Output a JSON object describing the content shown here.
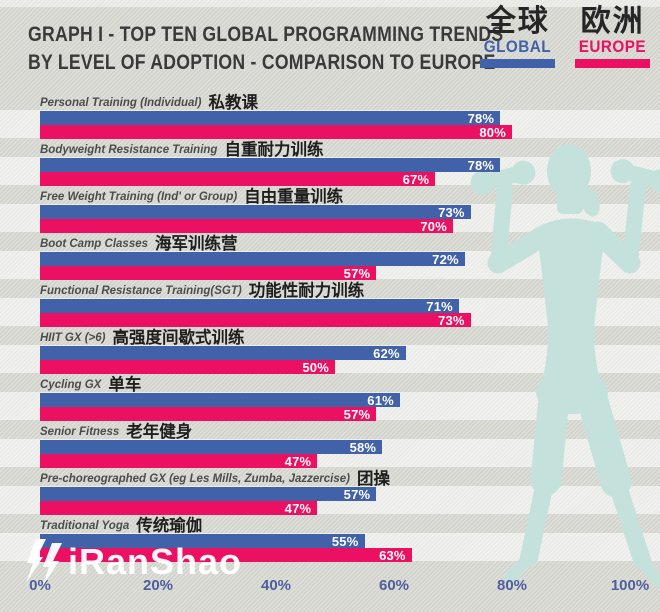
{
  "title": {
    "line1": "GRAPH I - TOP TEN GLOBAL PROGRAMMING TRENDS",
    "line2": "BY LEVEL OF ADOPTION - COMPARISON TO EUROPE"
  },
  "legend": {
    "global": {
      "zh": "全球",
      "en": "GLOBAL",
      "color": "#4161a8"
    },
    "europe": {
      "zh": "欧洲",
      "en": "EUROPE",
      "color": "#eb1062"
    }
  },
  "watermark": {
    "text": "iRanShao"
  },
  "rows": [
    {
      "en": "Personal Training (Individual)",
      "zh": "私教课",
      "global": "78%",
      "europe": "80%"
    },
    {
      "en": "Bodyweight Resistance Training",
      "zh": "自重耐力训练",
      "global": "78%",
      "europe": "67%"
    },
    {
      "en": "Free Weight Training (Ind' or Group)",
      "zh": "自由重量训练",
      "global": "73%",
      "europe": "70%"
    },
    {
      "en": "Boot Camp Classes",
      "zh": "海军训练营",
      "global": "72%",
      "europe": "57%"
    },
    {
      "en": "Functional Resistance Training(SGT)",
      "zh": "功能性耐力训练",
      "global": "71%",
      "europe": "73%"
    },
    {
      "en": "HIIT GX (>6)",
      "zh": "高强度间歇式训练",
      "global": "62%",
      "europe": "50%"
    },
    {
      "en": "Cycling GX",
      "zh": "单车",
      "global": "61%",
      "europe": "57%"
    },
    {
      "en": "Senior Fitness",
      "zh": "老年健身",
      "global": "58%",
      "europe": "47%"
    },
    {
      "en": "Pre-choreographed GX (eg Les Mills, Zumba, Jazzercise)",
      "zh": "团操",
      "global": "57%",
      "europe": "47%"
    },
    {
      "en": "Traditional Yoga",
      "zh": "传统瑜伽",
      "global": "55%",
      "europe": "63%"
    }
  ],
  "chart_data": {
    "type": "bar",
    "orientation": "horizontal",
    "title": "GRAPH I - TOP TEN GLOBAL PROGRAMMING TRENDS BY LEVEL OF ADOPTION - COMPARISON TO EUROPE",
    "categories": [
      "Personal Training (Individual) 私教课",
      "Bodyweight Resistance Training 自重耐力训练",
      "Free Weight Training (Ind' or Group) 自由重量训练",
      "Boot Camp Classes 海军训练营",
      "Functional Resistance Training(SGT) 功能性耐力训练",
      "HIIT GX (>6) 高强度间歇式训练",
      "Cycling GX 单车",
      "Senior Fitness 老年健身",
      "Pre-choreographed GX (eg Les Mills, Zumba, Jazzercise) 团操",
      "Traditional Yoga 传统瑜伽"
    ],
    "series": [
      {
        "name": "GLOBAL 全球",
        "color": "#4161a8",
        "values": [
          78,
          78,
          73,
          72,
          71,
          62,
          61,
          58,
          57,
          55
        ]
      },
      {
        "name": "EUROPE 欧洲",
        "color": "#eb1062",
        "values": [
          80,
          67,
          70,
          57,
          73,
          50,
          57,
          47,
          47,
          63
        ]
      }
    ],
    "x_ticks": [
      "0%",
      "20%",
      "40%",
      "60%",
      "80%",
      "100%"
    ],
    "xlim": [
      0,
      100
    ],
    "value_suffix": "%",
    "grid": false,
    "legend_position": "top-right"
  },
  "colors": {
    "global_blue": "#4161a8",
    "europe_pink": "#eb1062",
    "axis_label": "#4d5f9c",
    "silhouette": "#c4e2db",
    "background": "#d8d8d2",
    "title_text": "#3a3a3a"
  }
}
